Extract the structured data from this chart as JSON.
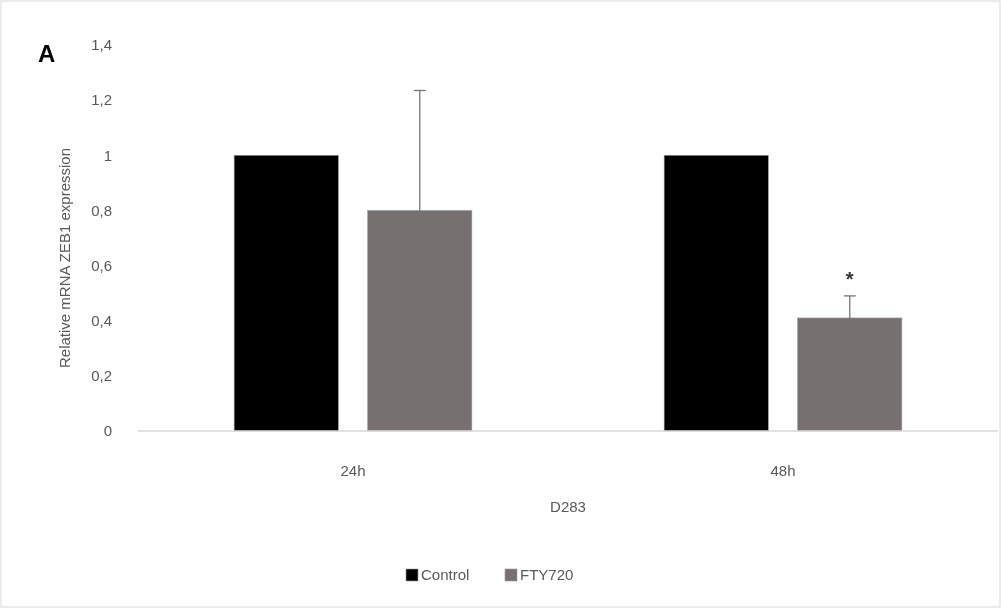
{
  "chart_data": {
    "type": "bar",
    "title": "A",
    "xlabel": "D283",
    "ylabel": "Relative mRNA ZEB1 expression",
    "categories": [
      "24h",
      "48h"
    ],
    "series": [
      {
        "name": "Control",
        "color": "#000000",
        "values": [
          1,
          1
        ]
      },
      {
        "name": "FTY720",
        "color": "#767170",
        "values": [
          0.8,
          0.41
        ],
        "errors": [
          [
            0.8,
            1.235
          ],
          [
            0.41,
            0.49
          ]
        ]
      }
    ],
    "ylim": [
      0,
      1.4
    ],
    "yticks": [
      {
        "value": 0,
        "label": "0"
      },
      {
        "value": 0.2,
        "label": "0,2"
      },
      {
        "value": 0.4,
        "label": "0,4"
      },
      {
        "value": 0.6,
        "label": "0,6"
      },
      {
        "value": 0.8,
        "label": "0,8"
      },
      {
        "value": 1,
        "label": "1"
      },
      {
        "value": 1.2,
        "label": "1,2"
      },
      {
        "value": 1.4,
        "label": "1,4"
      }
    ],
    "annotations": [
      "*"
    ],
    "grid": false,
    "legend": "bottom"
  }
}
